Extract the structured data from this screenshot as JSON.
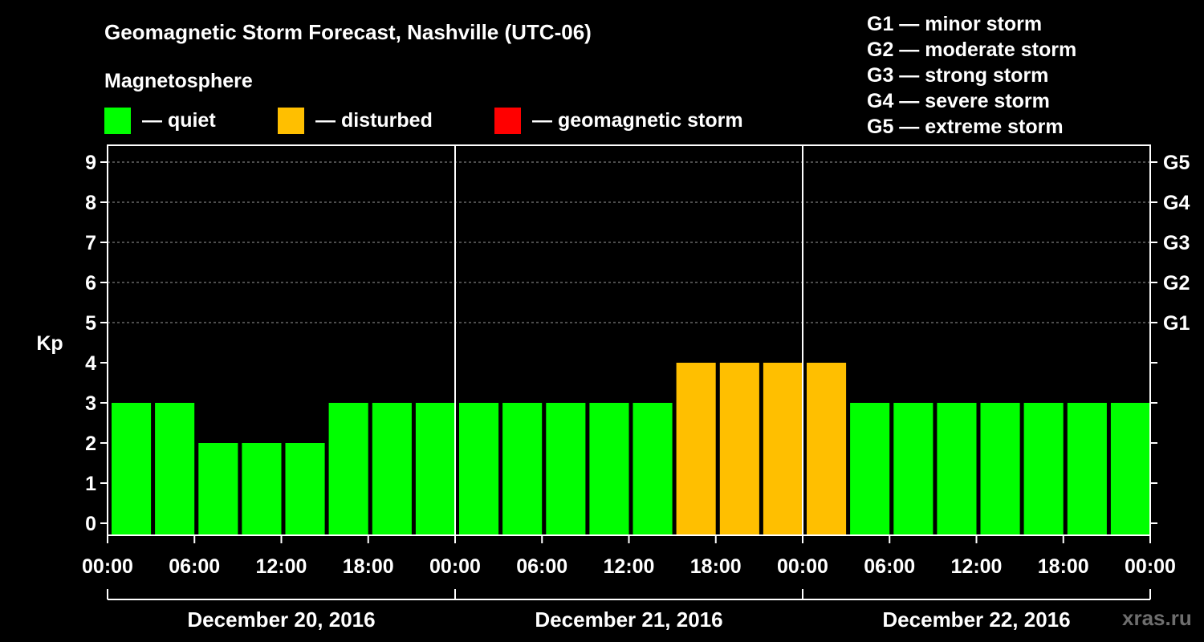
{
  "header": {
    "title": "Geomagnetic Storm Forecast, Nashville (UTC-06)",
    "section": "Magnetosphere"
  },
  "legend": [
    {
      "label": "— quiet",
      "color": "#00ff00"
    },
    {
      "label": "— disturbed",
      "color": "#ffbf00"
    },
    {
      "label": "— geomagnetic storm",
      "color": "#ff0000"
    }
  ],
  "storm_scale": [
    "G1 — minor storm",
    "G2 — moderate storm",
    "G3 — strong storm",
    "G4 — severe storm",
    "G5 — extreme storm"
  ],
  "watermark": "xras.ru",
  "colors": {
    "background": "#000000",
    "axis": "#ffffff",
    "grid": "#9a9a9a",
    "quiet": "#00ff00",
    "disturbed": "#ffbf00",
    "storm": "#ff0000"
  },
  "chart_data": {
    "type": "bar",
    "title": "Geomagnetic Storm Forecast, Nashville (UTC-06)",
    "ylabel": "Kp",
    "xlabel": "",
    "ylim": [
      0,
      9
    ],
    "yticks": [
      "0",
      "1",
      "2",
      "3",
      "4",
      "5",
      "6",
      "7",
      "8",
      "9"
    ],
    "right_ticks": [
      {
        "kp": 5,
        "label": "G1"
      },
      {
        "kp": 6,
        "label": "G2"
      },
      {
        "kp": 7,
        "label": "G3"
      },
      {
        "kp": 8,
        "label": "G4"
      },
      {
        "kp": 9,
        "label": "G5"
      }
    ],
    "grid_levels": [
      5,
      6,
      7,
      8,
      9
    ],
    "xticks": [
      "00:00",
      "06:00",
      "12:00",
      "18:00",
      "00:00",
      "06:00",
      "12:00",
      "18:00",
      "00:00",
      "06:00",
      "12:00",
      "18:00",
      "00:00"
    ],
    "days": [
      "December 20, 2016",
      "December 21, 2016",
      "December 22, 2016"
    ],
    "intervals_per_day": 8,
    "values": [
      3,
      3,
      2,
      2,
      2,
      3,
      3,
      3,
      3,
      3,
      3,
      3,
      3,
      4,
      4,
      4,
      4,
      3,
      3,
      3,
      3,
      3,
      3,
      3
    ],
    "categories": [
      "quiet",
      "quiet",
      "quiet",
      "quiet",
      "quiet",
      "quiet",
      "quiet",
      "quiet",
      "quiet",
      "quiet",
      "quiet",
      "quiet",
      "quiet",
      "disturbed",
      "disturbed",
      "disturbed",
      "disturbed",
      "quiet",
      "quiet",
      "quiet",
      "quiet",
      "quiet",
      "quiet",
      "quiet"
    ]
  }
}
